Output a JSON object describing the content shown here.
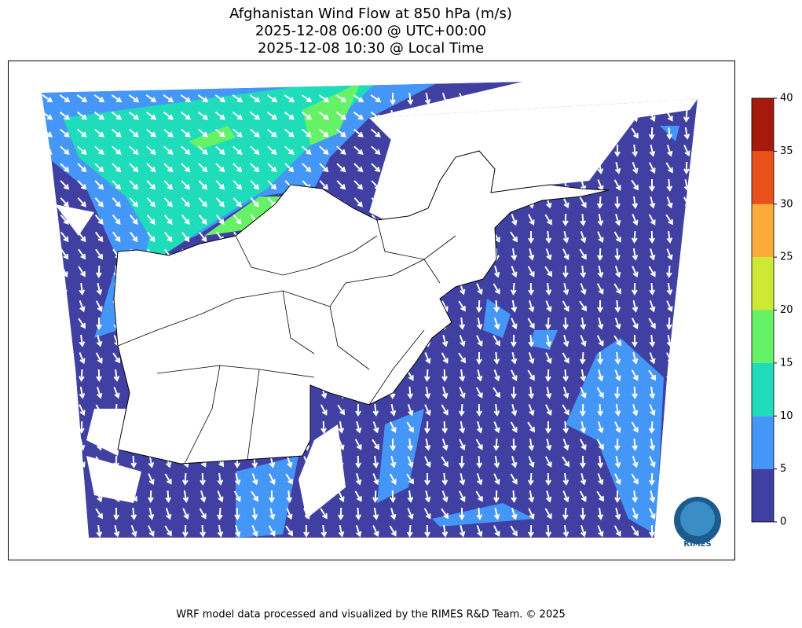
{
  "title": [
    "Afghanistan Wind Flow at 850 hPa (m/s)",
    "2025-12-08 06:00 @ UTC+00:00",
    "2025-12-08 10:30 @ Local Time"
  ],
  "colorbar": {
    "ticks": [
      0,
      5,
      10,
      15,
      20,
      25,
      30,
      35,
      40
    ],
    "colors": [
      "#4040a3",
      "#4597f7",
      "#1fdcbb",
      "#66f266",
      "#cde835",
      "#fcaa3a",
      "#e8521a",
      "#a51a0a"
    ]
  },
  "logo": "RIMES",
  "footer": "WRF model data processed and visualized by the RIMES R&D Team. © 2025"
}
